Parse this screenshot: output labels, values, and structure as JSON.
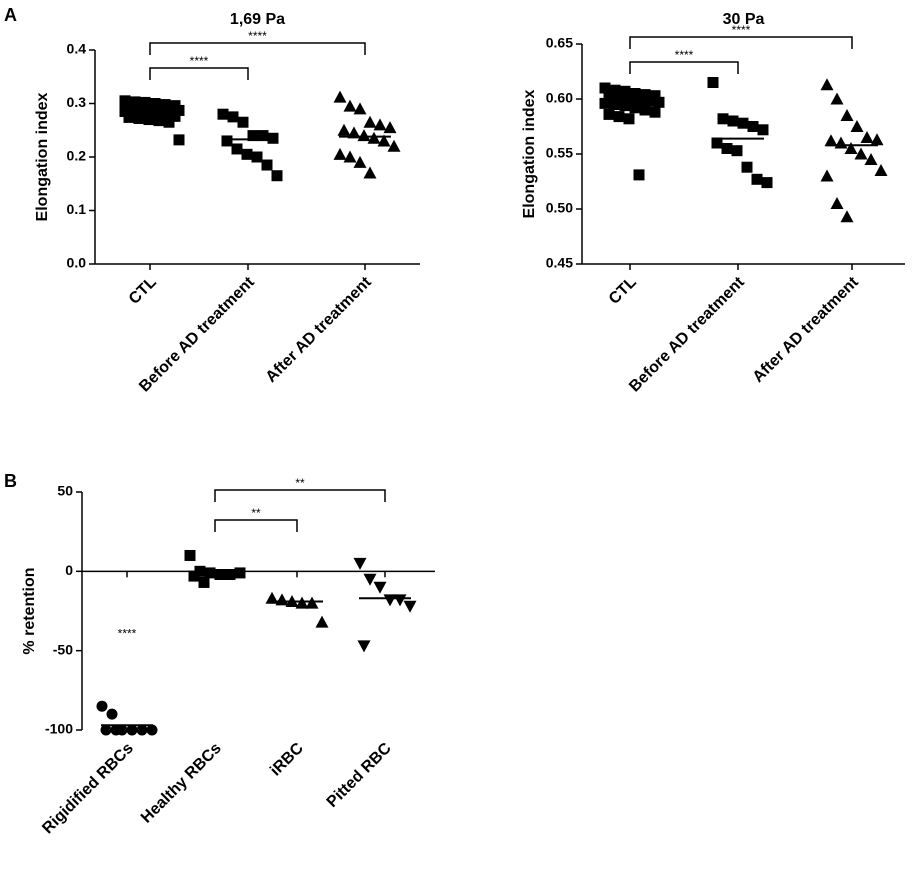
{
  "panel_labels": [
    "A",
    "B"
  ],
  "chart_data": [
    {
      "type": "dot",
      "title": "1,69 Pa",
      "y_label": "Elongation index",
      "categories": [
        "CTL",
        "Before AD treatment",
        "After AD treatment"
      ],
      "markers": [
        "square",
        "square",
        "triangle"
      ],
      "values": [
        [
          0.305,
          0.303,
          0.302,
          0.3,
          0.298,
          0.296,
          0.295,
          0.293,
          0.291,
          0.29,
          0.288,
          0.287,
          0.285,
          0.284,
          0.282,
          0.28,
          0.278,
          0.276,
          0.274,
          0.272,
          0.27,
          0.268,
          0.265,
          0.232
        ],
        [
          0.28,
          0.275,
          0.265,
          0.24,
          0.24,
          0.235,
          0.23,
          0.215,
          0.205,
          0.2,
          0.185,
          0.165
        ],
        [
          0.312,
          0.295,
          0.29,
          0.265,
          0.26,
          0.255,
          0.25,
          0.245,
          0.24,
          0.235,
          0.23,
          0.22,
          0.205,
          0.2,
          0.19,
          0.17
        ]
      ],
      "means": [
        0.285,
        0.233,
        0.238
      ],
      "ylim": [
        0,
        0.4
      ],
      "yticks": [
        {
          "value": 0,
          "label": "0.0"
        },
        0.1,
        0.2,
        0.3,
        0.4
      ],
      "comparisons": [
        {
          "from": 0,
          "to": 1,
          "label": "****"
        },
        {
          "from": 0,
          "to": 2,
          "label": "****"
        }
      ],
      "color": "#000000"
    },
    {
      "type": "dot",
      "title": "30 Pa",
      "y_label": "Elongation index",
      "categories": [
        "CTL",
        "Before AD treatment",
        "After AD treatment"
      ],
      "markers": [
        "square",
        "square",
        "triangle"
      ],
      "values": [
        [
          0.61,
          0.608,
          0.607,
          0.605,
          0.604,
          0.603,
          0.602,
          0.601,
          0.6,
          0.599,
          0.598,
          0.597,
          0.596,
          0.595,
          0.594,
          0.592,
          0.59,
          0.588,
          0.586,
          0.584,
          0.582,
          0.531
        ],
        [
          0.615,
          0.582,
          0.58,
          0.578,
          0.575,
          0.572,
          0.56,
          0.555,
          0.553,
          0.538,
          0.527,
          0.524
        ],
        [
          0.613,
          0.6,
          0.585,
          0.575,
          0.565,
          0.563,
          0.562,
          0.56,
          0.555,
          0.55,
          0.545,
          0.535,
          0.53,
          0.505,
          0.493
        ]
      ],
      "means": [
        0.599,
        0.564,
        0.558
      ],
      "ylim": [
        0.45,
        0.65
      ],
      "yticks": [
        0.45,
        {
          "value": 0.5,
          "label": "0.50"
        },
        0.55,
        {
          "value": 0.6,
          "label": "0.60"
        },
        0.65
      ],
      "comparisons": [
        {
          "from": 0,
          "to": 1,
          "label": "****"
        },
        {
          "from": 0,
          "to": 2,
          "label": "****"
        }
      ],
      "color": "#000000"
    },
    {
      "type": "dot",
      "y_label": "% retention",
      "categories": [
        "Rigidified RBCs",
        "Healthy RBCs",
        "iRBC",
        "Pitted RBC"
      ],
      "markers": [
        "circle",
        "square",
        "triangle",
        "triangle-down"
      ],
      "values": [
        [
          -85,
          -90,
          -100,
          -100,
          -100,
          -100,
          -100,
          -100
        ],
        [
          10,
          0,
          -1,
          -2,
          -2,
          -1,
          -3,
          -7
        ],
        [
          -17,
          -18,
          -19,
          -20,
          -20,
          -32
        ],
        [
          5,
          -5,
          -10,
          -18,
          -18,
          -22,
          -47
        ]
      ],
      "means": [
        -97,
        -1,
        -19,
        -17
      ],
      "ylim": [
        -100,
        50
      ],
      "yticks": [
        -100,
        -50,
        0,
        50
      ],
      "comparisons": [
        {
          "from": 1,
          "to": 2,
          "label": "**"
        },
        {
          "from": 1,
          "to": 3,
          "label": "**"
        }
      ],
      "annotations": [
        {
          "category": 0,
          "label": "****"
        }
      ],
      "color": "#000000"
    }
  ]
}
